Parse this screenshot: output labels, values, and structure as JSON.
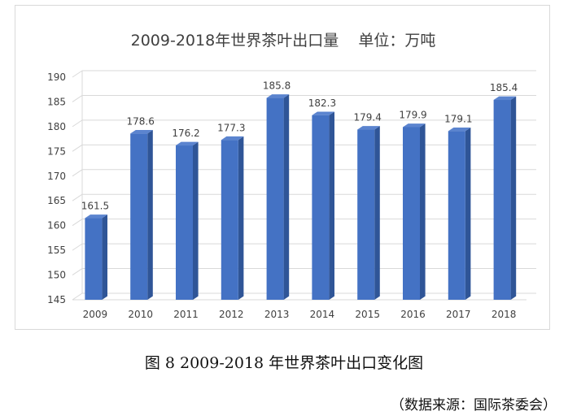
{
  "chart_data": {
    "type": "bar",
    "title": "2009-2018年世界茶叶出口量    单位：万吨",
    "categories": [
      "2009",
      "2010",
      "2011",
      "2012",
      "2013",
      "2014",
      "2015",
      "2016",
      "2017",
      "2018"
    ],
    "values": [
      161.5,
      178.6,
      176.2,
      177.3,
      185.8,
      182.3,
      179.4,
      179.9,
      179.1,
      185.4
    ],
    "value_labels": [
      "161.5",
      "178.6",
      "176.2",
      "177.3",
      "185.8",
      "182.3",
      "179.4",
      "179.9",
      "179.1",
      "185.4"
    ],
    "yticks": [
      "145",
      "150",
      "155",
      "160",
      "165",
      "170",
      "175",
      "180",
      "185",
      "190"
    ],
    "ylim": [
      145,
      190
    ],
    "grid": true,
    "bar_style": "3d",
    "colors": {
      "front": "#4472c4",
      "side": "#2f5597",
      "top": "#5b84cf"
    }
  },
  "caption": "图 8 2009-2018 年世界茶叶出口变化图",
  "source": "（数据来源：国际茶委会）"
}
